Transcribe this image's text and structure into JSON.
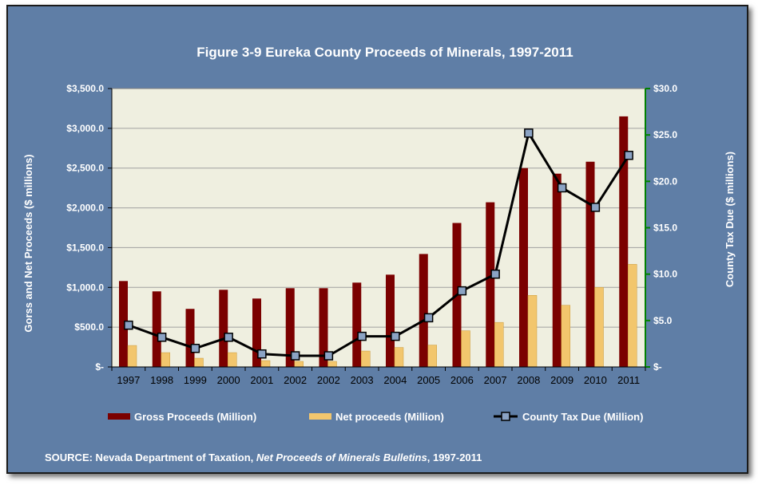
{
  "chart_data": {
    "type": "bar",
    "title": "Figure 3-9 Eureka County Proceeds of Minerals, 1997-2011",
    "ylabel": "Gorss and Net Proceeds ($ millions)",
    "y2label": "County Tax Due ($ millions)",
    "ylim": [
      0,
      3500
    ],
    "y2lim": [
      0,
      30
    ],
    "yticks": [
      "$-",
      "$500.0",
      "$1,000.0",
      "$1,500.0",
      "$2,000.0",
      "$2,500.0",
      "$3,000.0",
      "$3,500.0"
    ],
    "y2ticks": [
      "$-",
      "$5.0",
      "$10.0",
      "$15.0",
      "$20.0",
      "$25.0",
      "$30.0"
    ],
    "categories": [
      "1997",
      "1998",
      "1999",
      "2000",
      "2001",
      "2002",
      "2002",
      "2003",
      "2004",
      "2005",
      "2006",
      "2007",
      "2008",
      "2009",
      "2010",
      "2011"
    ],
    "series": [
      {
        "name": "Gross Proceeds (Million)",
        "type": "bar",
        "axis": "left",
        "color": "#7b0000",
        "values": [
          1080,
          950,
          730,
          970,
          860,
          990,
          990,
          1060,
          1160,
          1420,
          1810,
          2070,
          2500,
          2430,
          2580,
          3150
        ]
      },
      {
        "name": "Net proceeds (Million)",
        "type": "bar",
        "axis": "left",
        "color": "#f2c66d",
        "values": [
          270,
          180,
          110,
          180,
          80,
          70,
          70,
          200,
          245,
          275,
          455,
          560,
          900,
          775,
          1000,
          1290
        ]
      },
      {
        "name": "County Tax Due (Million)",
        "type": "line",
        "axis": "right",
        "color": "#000000",
        "values": [
          4.5,
          3.2,
          2.0,
          3.2,
          1.4,
          1.2,
          1.2,
          3.3,
          3.3,
          5.3,
          8.2,
          10.0,
          25.2,
          19.3,
          17.2,
          22.8
        ]
      }
    ],
    "grid": true,
    "legend": "bottom"
  },
  "source": {
    "prefix": "SOURCE: Nevada Department of Taxation, ",
    "italic": "Net Proceeds of Minerals Bulletins",
    "suffix": ", 1997-2011"
  },
  "colors": {
    "background": "#5f7ea6",
    "plot_area": "#efefe0",
    "right_axis": "#008000",
    "marker_fill": "#8ba3c4"
  }
}
